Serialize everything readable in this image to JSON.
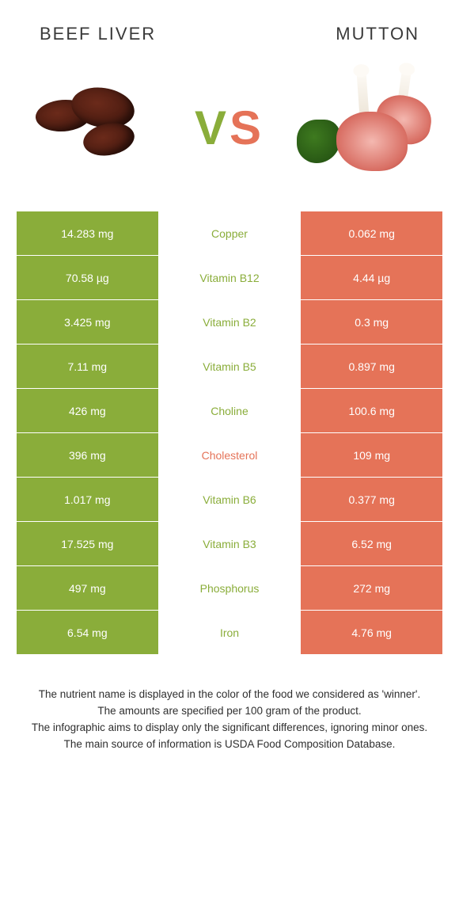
{
  "colors": {
    "left": "#8aad3a",
    "right": "#e57358",
    "left_text_on_white": "#8aad3a",
    "right_text_on_white": "#e57358",
    "header_text": "#3a3a3a",
    "footer_text": "#2f2f2f",
    "white": "#ffffff"
  },
  "header": {
    "left_title": "Beef Liver",
    "right_title": "Mutton"
  },
  "vs": {
    "v": "V",
    "s": "S"
  },
  "rows": [
    {
      "left": "14.283 mg",
      "label": "Copper",
      "right": "0.062 mg",
      "winner": "left"
    },
    {
      "left": "70.58 µg",
      "label": "Vitamin B12",
      "right": "4.44 µg",
      "winner": "left"
    },
    {
      "left": "3.425 mg",
      "label": "Vitamin B2",
      "right": "0.3 mg",
      "winner": "left"
    },
    {
      "left": "7.11 mg",
      "label": "Vitamin B5",
      "right": "0.897 mg",
      "winner": "left"
    },
    {
      "left": "426 mg",
      "label": "Choline",
      "right": "100.6 mg",
      "winner": "left"
    },
    {
      "left": "396 mg",
      "label": "Cholesterol",
      "right": "109 mg",
      "winner": "right"
    },
    {
      "left": "1.017 mg",
      "label": "Vitamin B6",
      "right": "0.377 mg",
      "winner": "left"
    },
    {
      "left": "17.525 mg",
      "label": "Vitamin B3",
      "right": "6.52 mg",
      "winner": "left"
    },
    {
      "left": "497 mg",
      "label": "Phosphorus",
      "right": "272 mg",
      "winner": "left"
    },
    {
      "left": "6.54 mg",
      "label": "Iron",
      "right": "4.76 mg",
      "winner": "left"
    }
  ],
  "footer": {
    "line1": "The nutrient name is displayed in the color of the food we considered as 'winner'.",
    "line2": "The amounts are specified per 100 gram of the product.",
    "line3": "The infographic aims to display only the significant differences, ignoring minor ones.",
    "line4": "The main source of information is USDA Food Composition Database."
  }
}
